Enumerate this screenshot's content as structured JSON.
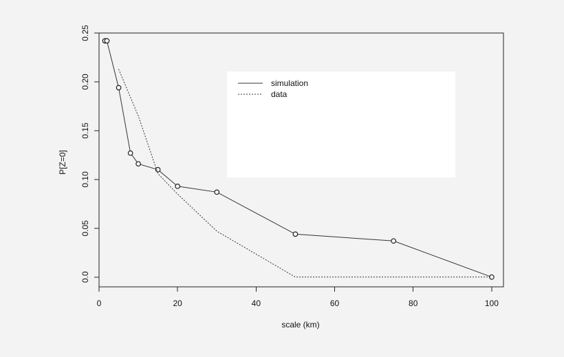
{
  "chart_data": {
    "type": "line",
    "title": "",
    "xlabel": "scale (km)",
    "ylabel": "P[Z=0]",
    "xlim": [
      0,
      103
    ],
    "ylim": [
      -0.01,
      0.25
    ],
    "xticks": [
      0,
      20,
      40,
      60,
      80,
      100
    ],
    "yticks": [
      0.0,
      0.05,
      0.1,
      0.15,
      0.2,
      0.25
    ],
    "x_tick_labels": [
      "0",
      "20",
      "40",
      "60",
      "80",
      "100"
    ],
    "y_tick_labels": [
      "0.0",
      "0.05",
      "0.10",
      "0.15",
      "0.20",
      "0.25"
    ],
    "grid": false,
    "legend_position": "top-right",
    "series": [
      {
        "name": "simulation",
        "style": "solid",
        "markers": true,
        "x": [
          1.5,
          2,
          5,
          8,
          10,
          15,
          20,
          30,
          50,
          75,
          100
        ],
        "y": [
          0.242,
          0.242,
          0.194,
          0.127,
          0.116,
          0.11,
          0.093,
          0.087,
          0.044,
          0.037,
          0.0
        ]
      },
      {
        "name": "data",
        "style": "dotted",
        "markers": false,
        "x": [
          5,
          10,
          15,
          20,
          30,
          50,
          75,
          100
        ],
        "y": [
          0.213,
          0.165,
          0.106,
          0.085,
          0.047,
          0.0,
          0.0,
          0.0
        ]
      }
    ]
  },
  "colors": {
    "background": "#f3f3f3",
    "legend_background": "#ffffff",
    "ink": "#222222"
  }
}
